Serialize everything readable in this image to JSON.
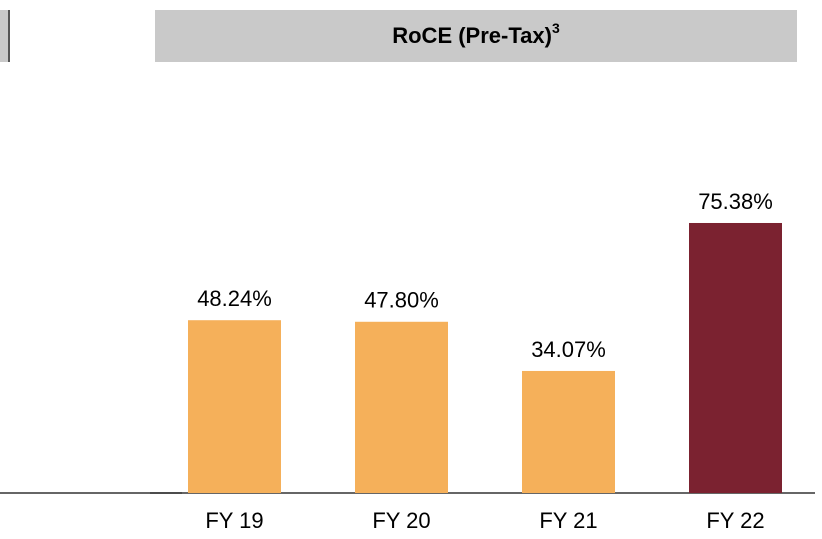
{
  "chart_data": {
    "type": "bar",
    "title": "RoCE (Pre-Tax)",
    "title_note": "3",
    "categories": [
      "FY 19",
      "FY 20",
      "FY 21",
      "FY 22"
    ],
    "values": [
      48.24,
      47.8,
      34.07,
      75.38
    ],
    "value_labels": [
      "48.24%",
      "47.80%",
      "34.07%",
      "75.38%"
    ],
    "colors": [
      "#f5b05a",
      "#f5b05a",
      "#f5b05a",
      "#7b2230"
    ]
  }
}
